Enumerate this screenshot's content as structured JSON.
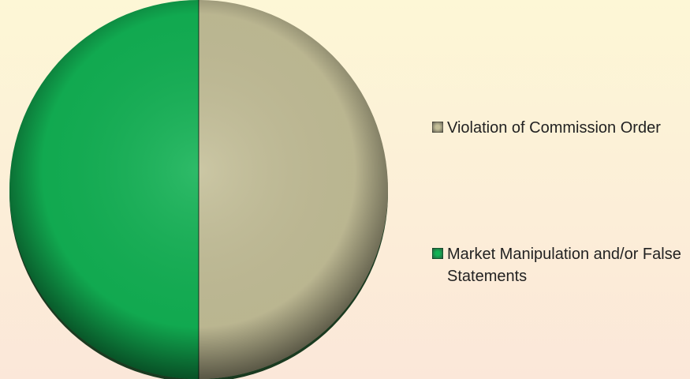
{
  "chart_data": {
    "type": "pie",
    "categories": [
      "Violation of Commission Order",
      "Market Manipulation and/or False Statements"
    ],
    "values": [
      50,
      50
    ],
    "colors": [
      "#c4bf98",
      "#12b254"
    ]
  }
}
